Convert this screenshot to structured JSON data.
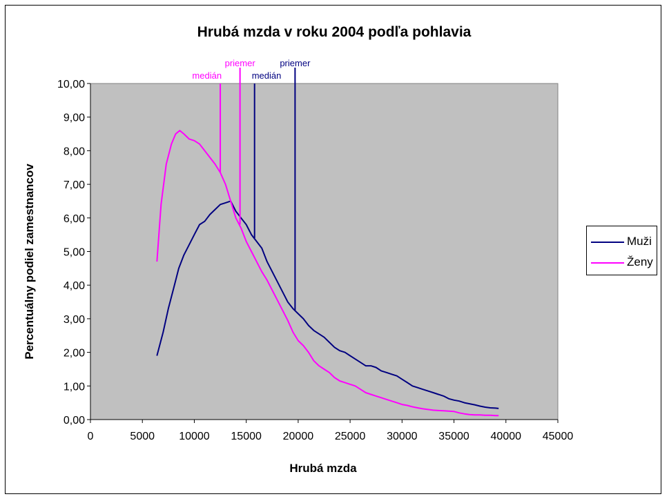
{
  "chart_data": {
    "type": "line",
    "title": "Hrubá mzda v roku 2004 podľa pohlavia",
    "xlabel": "Hrubá mzda",
    "ylabel": "Percentuálny podiel zamestnancov",
    "xlim": [
      0,
      45000
    ],
    "ylim": [
      0,
      10
    ],
    "xticks": [
      0,
      5000,
      10000,
      15000,
      20000,
      25000,
      30000,
      35000,
      40000,
      45000
    ],
    "xtick_labels": [
      "0",
      "5000",
      "10000",
      "15000",
      "20000",
      "25000",
      "30000",
      "35000",
      "40000",
      "45000"
    ],
    "yticks": [
      0,
      1,
      2,
      3,
      4,
      5,
      6,
      7,
      8,
      9,
      10
    ],
    "ytick_labels": [
      "0,00",
      "1,00",
      "2,00",
      "3,00",
      "4,00",
      "5,00",
      "6,00",
      "7,00",
      "8,00",
      "9,00",
      "10,00"
    ],
    "plot_background": "#c0c0c0",
    "grid": false,
    "legend_position": "right",
    "series": [
      {
        "name": "Muži",
        "color": "#000080",
        "points": [
          [
            6400,
            1.9
          ],
          [
            7000,
            2.6
          ],
          [
            7500,
            3.3
          ],
          [
            8000,
            3.9
          ],
          [
            8500,
            4.5
          ],
          [
            9000,
            4.9
          ],
          [
            9500,
            5.2
          ],
          [
            10000,
            5.5
          ],
          [
            10500,
            5.8
          ],
          [
            11000,
            5.9
          ],
          [
            11500,
            6.1
          ],
          [
            12000,
            6.25
          ],
          [
            12500,
            6.4
          ],
          [
            13000,
            6.45
          ],
          [
            13500,
            6.5
          ],
          [
            14000,
            6.2
          ],
          [
            14500,
            6.0
          ],
          [
            15000,
            5.8
          ],
          [
            15500,
            5.5
          ],
          [
            16000,
            5.3
          ],
          [
            16500,
            5.1
          ],
          [
            17000,
            4.7
          ],
          [
            17500,
            4.4
          ],
          [
            18000,
            4.1
          ],
          [
            18500,
            3.8
          ],
          [
            19000,
            3.5
          ],
          [
            19500,
            3.3
          ],
          [
            20000,
            3.15
          ],
          [
            20500,
            3.0
          ],
          [
            21000,
            2.8
          ],
          [
            21500,
            2.65
          ],
          [
            22000,
            2.55
          ],
          [
            22500,
            2.45
          ],
          [
            23000,
            2.3
          ],
          [
            23500,
            2.15
          ],
          [
            24000,
            2.05
          ],
          [
            24500,
            2.0
          ],
          [
            25000,
            1.9
          ],
          [
            25500,
            1.8
          ],
          [
            26000,
            1.7
          ],
          [
            26500,
            1.6
          ],
          [
            27000,
            1.6
          ],
          [
            27500,
            1.55
          ],
          [
            28000,
            1.45
          ],
          [
            28500,
            1.4
          ],
          [
            29000,
            1.35
          ],
          [
            29500,
            1.3
          ],
          [
            30000,
            1.2
          ],
          [
            30500,
            1.1
          ],
          [
            31000,
            1.0
          ],
          [
            31500,
            0.95
          ],
          [
            32000,
            0.9
          ],
          [
            32500,
            0.85
          ],
          [
            33000,
            0.8
          ],
          [
            33500,
            0.75
          ],
          [
            34000,
            0.7
          ],
          [
            34500,
            0.62
          ],
          [
            35000,
            0.58
          ],
          [
            35500,
            0.55
          ],
          [
            36000,
            0.5
          ],
          [
            36500,
            0.47
          ],
          [
            37000,
            0.44
          ],
          [
            37500,
            0.4
          ],
          [
            38000,
            0.37
          ],
          [
            38500,
            0.35
          ],
          [
            39000,
            0.34
          ],
          [
            39300,
            0.33
          ]
        ]
      },
      {
        "name": "Ženy",
        "color": "#ff00ff",
        "points": [
          [
            6400,
            4.7
          ],
          [
            6800,
            6.4
          ],
          [
            7300,
            7.6
          ],
          [
            7800,
            8.2
          ],
          [
            8200,
            8.5
          ],
          [
            8600,
            8.6
          ],
          [
            9000,
            8.5
          ],
          [
            9500,
            8.35
          ],
          [
            10000,
            8.3
          ],
          [
            10500,
            8.2
          ],
          [
            11000,
            8.0
          ],
          [
            11500,
            7.8
          ],
          [
            12000,
            7.6
          ],
          [
            12500,
            7.35
          ],
          [
            13000,
            7.0
          ],
          [
            13500,
            6.5
          ],
          [
            14000,
            6.0
          ],
          [
            14500,
            5.7
          ],
          [
            15000,
            5.3
          ],
          [
            15500,
            5.0
          ],
          [
            16000,
            4.7
          ],
          [
            16500,
            4.4
          ],
          [
            17000,
            4.15
          ],
          [
            17500,
            3.85
          ],
          [
            18000,
            3.55
          ],
          [
            18500,
            3.25
          ],
          [
            19000,
            2.95
          ],
          [
            19500,
            2.6
          ],
          [
            20000,
            2.35
          ],
          [
            20500,
            2.2
          ],
          [
            21000,
            2.0
          ],
          [
            21500,
            1.75
          ],
          [
            22000,
            1.6
          ],
          [
            22500,
            1.5
          ],
          [
            23000,
            1.4
          ],
          [
            23500,
            1.25
          ],
          [
            24000,
            1.15
          ],
          [
            24500,
            1.1
          ],
          [
            25000,
            1.05
          ],
          [
            25500,
            1.0
          ],
          [
            26000,
            0.9
          ],
          [
            26500,
            0.8
          ],
          [
            27000,
            0.75
          ],
          [
            27500,
            0.7
          ],
          [
            28000,
            0.65
          ],
          [
            28500,
            0.6
          ],
          [
            29000,
            0.55
          ],
          [
            29500,
            0.5
          ],
          [
            30000,
            0.45
          ],
          [
            30500,
            0.42
          ],
          [
            31000,
            0.38
          ],
          [
            31500,
            0.35
          ],
          [
            32000,
            0.32
          ],
          [
            32500,
            0.3
          ],
          [
            33000,
            0.28
          ],
          [
            33500,
            0.27
          ],
          [
            34000,
            0.26
          ],
          [
            34500,
            0.25
          ],
          [
            35000,
            0.24
          ],
          [
            35500,
            0.2
          ],
          [
            36000,
            0.17
          ],
          [
            36500,
            0.15
          ],
          [
            37000,
            0.14
          ],
          [
            37500,
            0.14
          ],
          [
            38000,
            0.13
          ],
          [
            38500,
            0.13
          ],
          [
            39000,
            0.12
          ],
          [
            39300,
            0.12
          ]
        ]
      }
    ],
    "annotations": [
      {
        "label": "medián",
        "series": "Ženy",
        "x": 12500,
        "y_start": 7.35,
        "color": "#ff00ff"
      },
      {
        "label": "priemer",
        "series": "Ženy",
        "x": 14400,
        "y_start": 5.8,
        "color": "#ff00ff"
      },
      {
        "label": "medián",
        "series": "Muži",
        "x": 15800,
        "y_start": 5.4,
        "color": "#000080"
      },
      {
        "label": "priemer",
        "series": "Muži",
        "x": 19700,
        "y_start": 3.25,
        "color": "#000080"
      }
    ]
  }
}
